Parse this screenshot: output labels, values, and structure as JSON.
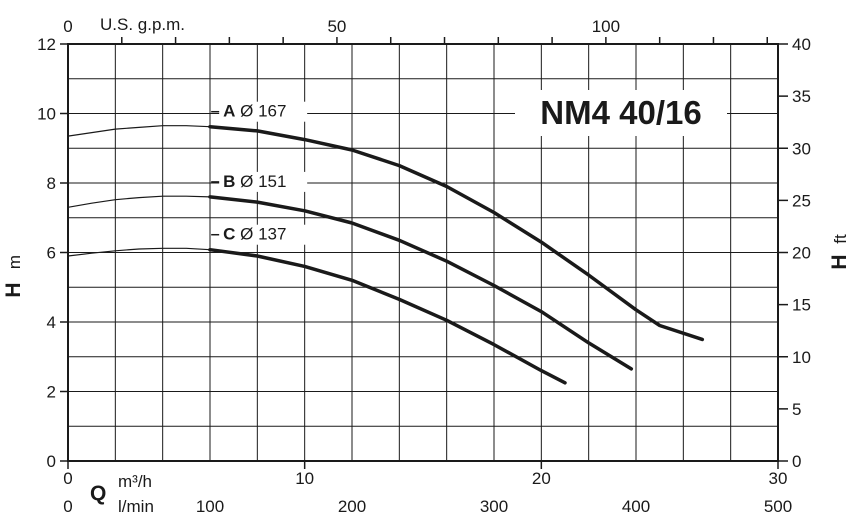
{
  "chart_data": {
    "type": "line",
    "title": "NM4 40/16",
    "xlabel": "Q",
    "ylabel": "H",
    "axes": {
      "left": {
        "label": "H",
        "unit": "m",
        "range": [
          0,
          12
        ],
        "ticks": [
          "0",
          "2",
          "4",
          "6",
          "8",
          "10",
          "12"
        ]
      },
      "right": {
        "label": "H",
        "unit": "ft",
        "range": [
          0,
          40
        ],
        "ticks": [
          "0",
          "5",
          "10",
          "15",
          "20",
          "25",
          "30",
          "35",
          "40"
        ]
      },
      "bottom": {
        "label": "Q",
        "unit": "m³/h",
        "range": [
          0,
          30
        ],
        "ticks": [
          "0",
          "10",
          "20",
          "30"
        ]
      },
      "bottom2": {
        "unit": "l/min",
        "range": [
          0,
          500
        ],
        "ticks": [
          "0",
          "100",
          "200",
          "300",
          "400",
          "500"
        ]
      },
      "top": {
        "unit": "U.S. g.p.m.",
        "range": [
          0,
          132
        ],
        "ticks": [
          "0",
          "50",
          "100"
        ]
      }
    },
    "grid": true,
    "series": [
      {
        "name": "A Ø 167",
        "letter": "A",
        "diameter": "Ø 167",
        "y_axis": "left",
        "points": [
          [
            0,
            9.35
          ],
          [
            1,
            9.45
          ],
          [
            2,
            9.55
          ],
          [
            3,
            9.6
          ],
          [
            4,
            9.65
          ],
          [
            5,
            9.65
          ],
          [
            6,
            9.62
          ],
          [
            8,
            9.5
          ],
          [
            10,
            9.25
          ],
          [
            12,
            8.95
          ],
          [
            14,
            8.5
          ],
          [
            16,
            7.9
          ],
          [
            18,
            7.15
          ],
          [
            20,
            6.3
          ],
          [
            22,
            5.35
          ],
          [
            24,
            4.35
          ],
          [
            25,
            3.9
          ],
          [
            26.8,
            3.5
          ]
        ],
        "dashed_until": 5.5
      },
      {
        "name": "B Ø 151",
        "letter": "B",
        "diameter": "Ø 151",
        "y_axis": "left",
        "points": [
          [
            0,
            7.3
          ],
          [
            1,
            7.42
          ],
          [
            2,
            7.52
          ],
          [
            3,
            7.58
          ],
          [
            4,
            7.62
          ],
          [
            5,
            7.62
          ],
          [
            6,
            7.6
          ],
          [
            8,
            7.45
          ],
          [
            10,
            7.2
          ],
          [
            12,
            6.85
          ],
          [
            14,
            6.35
          ],
          [
            16,
            5.75
          ],
          [
            18,
            5.05
          ],
          [
            20,
            4.3
          ],
          [
            22,
            3.4
          ],
          [
            23.8,
            2.65
          ]
        ],
        "dashed_until": 5.5
      },
      {
        "name": "C Ø 137",
        "letter": "C",
        "diameter": "Ø 137",
        "y_axis": "left",
        "points": [
          [
            0,
            5.9
          ],
          [
            1,
            5.98
          ],
          [
            2,
            6.05
          ],
          [
            3,
            6.1
          ],
          [
            4,
            6.12
          ],
          [
            5,
            6.12
          ],
          [
            6,
            6.08
          ],
          [
            8,
            5.9
          ],
          [
            10,
            5.6
          ],
          [
            12,
            5.2
          ],
          [
            14,
            4.65
          ],
          [
            16,
            4.05
          ],
          [
            18,
            3.35
          ],
          [
            20,
            2.6
          ],
          [
            21,
            2.25
          ]
        ],
        "dashed_until": 5.5
      }
    ],
    "colors": {
      "curve": "#1a1a1a",
      "grid": "#1a1a1a",
      "frame": "#1a1a1a",
      "background": "#ffffff"
    }
  }
}
